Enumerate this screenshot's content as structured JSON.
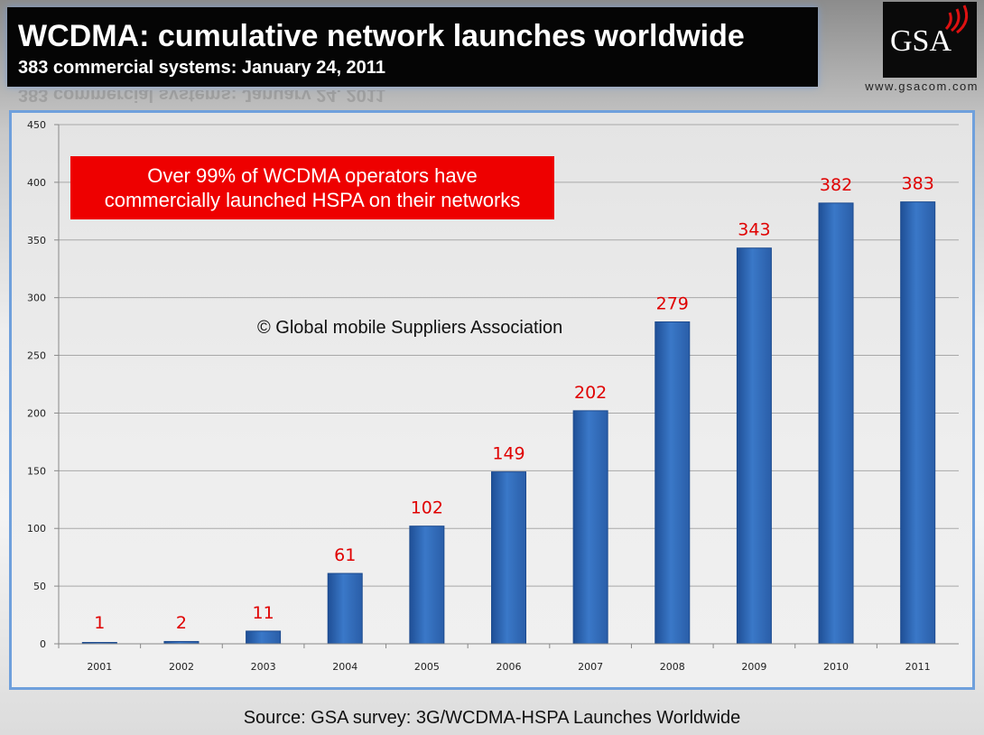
{
  "header": {
    "title": "WCDMA: cumulative network launches worldwide",
    "subtitle": "383 commercial systems: January 24, 2011"
  },
  "logo": {
    "text": "GSA",
    "website": "www.gsacom.com"
  },
  "callout": {
    "line1": "Over 99% of WCDMA operators have",
    "line2": "commercially launched HSPA on their networks"
  },
  "copyright": "© Global mobile Suppliers Association",
  "source": "Source: GSA survey: 3G/WCDMA-HSPA Launches Worldwide",
  "colors": {
    "bar": "#3a78c8",
    "label": "#e00000",
    "callout": "#ee0000"
  },
  "chart_data": {
    "type": "bar",
    "categories": [
      "2001",
      "2002",
      "2003",
      "2004",
      "2005",
      "2006",
      "2007",
      "2008",
      "2009",
      "2010",
      "2011"
    ],
    "values": [
      1,
      2,
      11,
      61,
      102,
      149,
      202,
      279,
      343,
      382,
      383
    ],
    "title": "WCDMA: cumulative network launches worldwide",
    "subtitle": "383 commercial systems: January 24, 2011",
    "xlabel": "",
    "ylabel": "",
    "ylim": [
      0,
      450
    ],
    "yticks": [
      0,
      50,
      100,
      150,
      200,
      250,
      300,
      350,
      400,
      450
    ],
    "grid": true,
    "legend": "none"
  }
}
